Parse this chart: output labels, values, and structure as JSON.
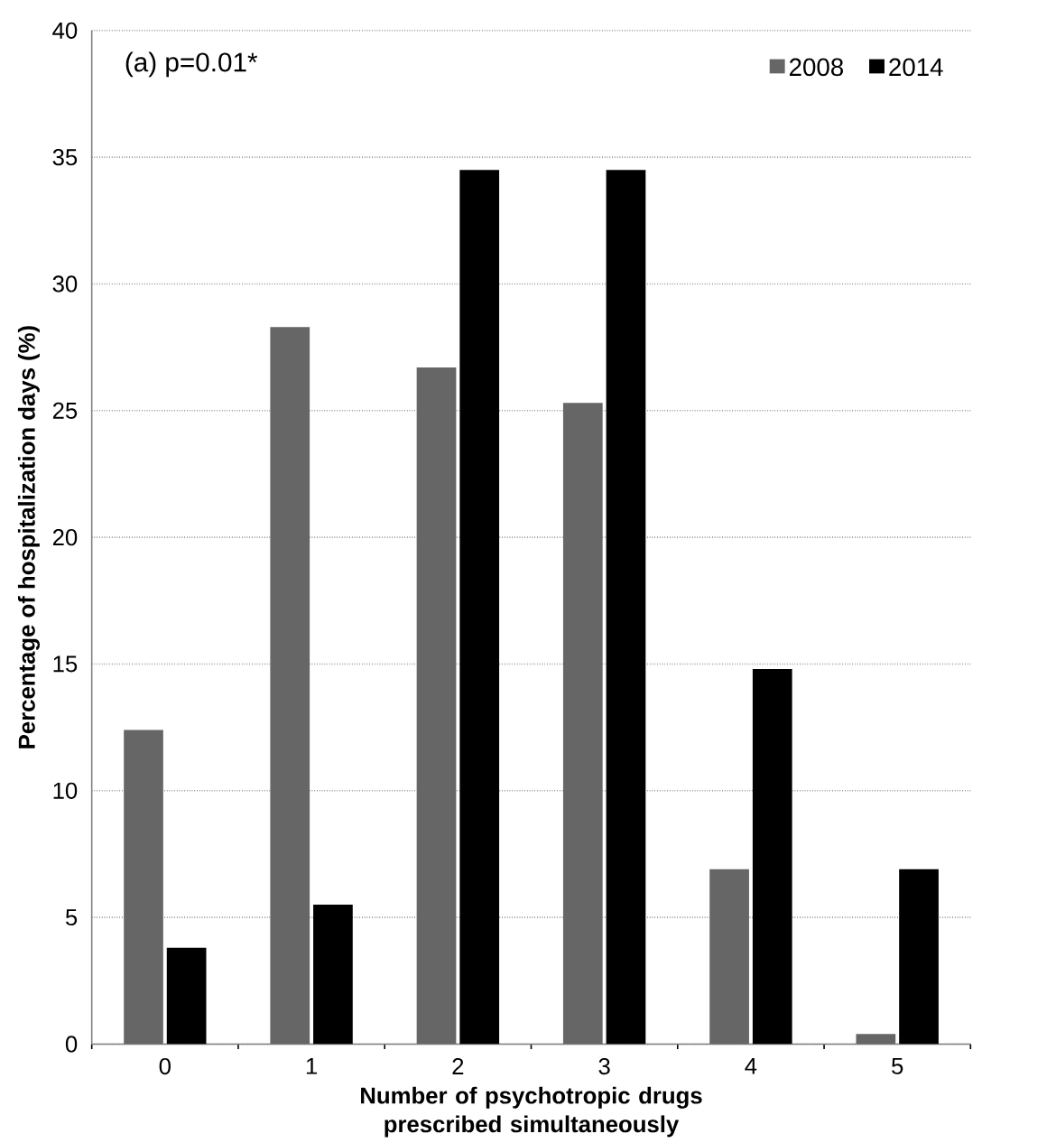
{
  "chart_data": {
    "type": "bar",
    "ylabel": "Percentage of hospitalization  days (%)",
    "xlabel": "Number of psychotropic drugs  prescribed simultaneously",
    "categories": [
      "0",
      "1",
      "2",
      "3",
      "4",
      "5"
    ],
    "series": [
      {
        "name": "2008",
        "color": "#666666",
        "values": [
          12.4,
          28.3,
          26.7,
          25.3,
          6.9,
          0.4
        ]
      },
      {
        "name": "2014",
        "color": "#000000",
        "values": [
          3.8,
          5.5,
          34.5,
          34.5,
          14.8,
          6.9
        ]
      }
    ],
    "ylim": [
      0,
      40
    ],
    "yticks": [
      0,
      5,
      10,
      15,
      20,
      25,
      30,
      35,
      40
    ],
    "grid": "y",
    "legend": "top right",
    "annotations": [
      "(a) p=0.01*"
    ]
  }
}
